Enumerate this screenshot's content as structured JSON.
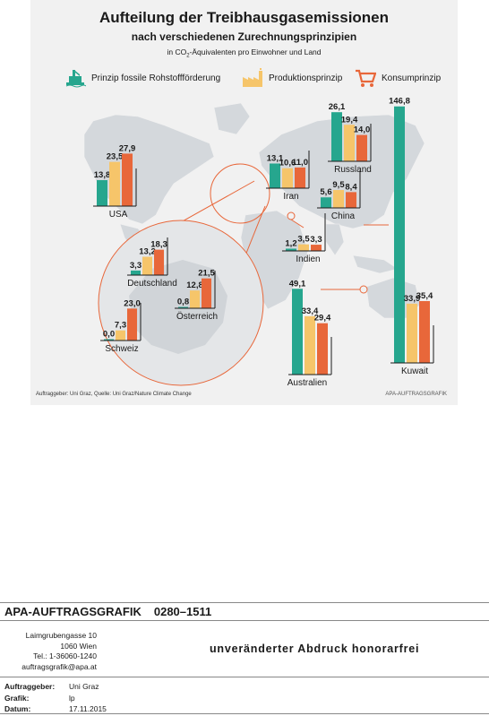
{
  "title": "Aufteilung der Treibhausgasemissionen",
  "subtitle": "nach verschiedenen Zurechnungsprinzipien",
  "unit_pre": "in CO",
  "unit_sub": "2",
  "unit_post": "-Äquivalenten pro Einwohner und Land",
  "legend": [
    {
      "label": "Prinzip fossile Rohstoffförderung",
      "icon": "oil-rig-icon",
      "color": "#26a68e"
    },
    {
      "label": "Produktionsprinzip",
      "icon": "factory-icon",
      "color": "#f6c56a"
    },
    {
      "label": "Konsumprinzip",
      "icon": "shopping-cart-icon",
      "color": "#e8673a"
    }
  ],
  "colors": {
    "extraction": "#26a68e",
    "production": "#f6c56a",
    "consumption": "#e8673a",
    "background": "#f1f1f1",
    "map": "#d4d8dc"
  },
  "source": "Auftraggeber: Uni Graz, Quelle: Uni Graz/Nature Climate Change",
  "credit": "APA-AUFTRAGSGRAFIK",
  "chart_data": {
    "type": "bar",
    "series": [
      {
        "name": "Prinzip fossile Rohstoffförderung"
      },
      {
        "name": "Produktionsprinzip"
      },
      {
        "name": "Konsumprinzip"
      }
    ],
    "countries": [
      {
        "name": "USA",
        "values": [
          13.8,
          23.5,
          27.9
        ],
        "labels": [
          "13,8",
          "23,5",
          "27,9"
        ]
      },
      {
        "name": "Russland",
        "values": [
          26.1,
          19.4,
          14.0
        ],
        "labels": [
          "26,1",
          "19,4",
          "14,0"
        ]
      },
      {
        "name": "Iran",
        "values": [
          13.1,
          10.6,
          11.0
        ],
        "labels": [
          "13,1",
          "10,6",
          "11,0"
        ]
      },
      {
        "name": "China",
        "values": [
          5.6,
          9.5,
          8.4
        ],
        "labels": [
          "5,6",
          "9,5",
          "8,4"
        ]
      },
      {
        "name": "Indien",
        "values": [
          1.2,
          3.5,
          3.3
        ],
        "labels": [
          "1,2",
          "3,5",
          "3,3"
        ]
      },
      {
        "name": "Kuwait",
        "values": [
          146.8,
          33.9,
          35.4
        ],
        "labels": [
          "146,8",
          "33,9",
          "35,4"
        ]
      },
      {
        "name": "Australien",
        "values": [
          49.1,
          33.4,
          29.4
        ],
        "labels": [
          "49,1",
          "33,4",
          "29,4"
        ]
      },
      {
        "name": "Deutschland",
        "values": [
          3.3,
          13.2,
          18.3
        ],
        "labels": [
          "3,3",
          "13,2",
          "18,3"
        ]
      },
      {
        "name": "Österreich",
        "values": [
          0.8,
          12.8,
          21.5
        ],
        "labels": [
          "0,8",
          "12,8",
          "21,5"
        ]
      },
      {
        "name": "Schweiz",
        "values": [
          0.0,
          7.3,
          23.0
        ],
        "labels": [
          "0,0",
          "7,3",
          "23,0"
        ]
      }
    ]
  },
  "footer": {
    "brand": "APA-AUFTRAGSGRAFIK",
    "code": "0280–1511",
    "address": [
      "Laimgrubengasse 10",
      "1060 Wien",
      "Tel.: 1-36060-1240",
      "auftragsgrafik@apa.at"
    ],
    "free_print": "unveränderter Abdruck honorarfrei",
    "meta": [
      {
        "key": "Auftraggeber:",
        "value": "Uni Graz"
      },
      {
        "key": "Grafik:",
        "value": "lp"
      },
      {
        "key": "Datum:",
        "value": "17.11.2015"
      }
    ]
  }
}
